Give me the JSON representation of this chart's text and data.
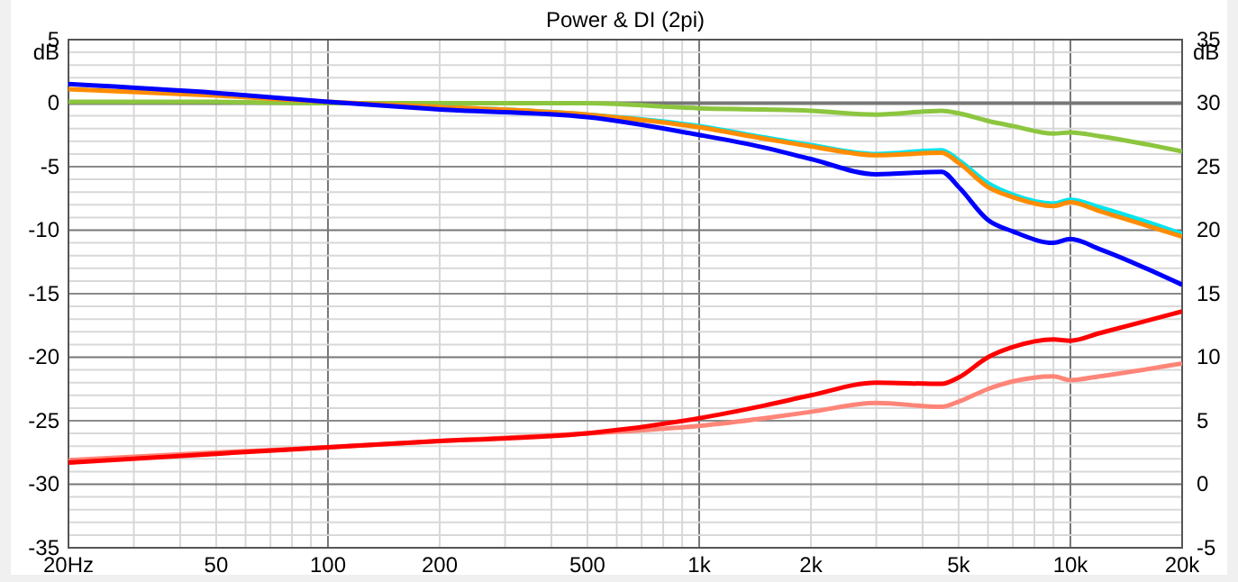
{
  "chart_data": {
    "type": "line",
    "title": "Power & DI (2pi)",
    "ylabel": "dB",
    "y2label": "dB",
    "log": "x",
    "grid": true,
    "line_style": "solid",
    "marker": "none",
    "x": [
      20,
      50,
      100,
      200,
      500,
      1000,
      1500,
      2000,
      3000,
      4500,
      5000,
      6000,
      7000,
      9000,
      10000,
      12000,
      20000
    ],
    "xlim": [
      20,
      20000
    ],
    "xticks": [
      {
        "value": 20,
        "label": "20Hz"
      },
      {
        "value": 30,
        "label": null
      },
      {
        "value": 40,
        "label": null
      },
      50,
      {
        "value": 60,
        "label": null
      },
      {
        "value": 70,
        "label": null
      },
      {
        "value": 80,
        "label": null
      },
      {
        "value": 90,
        "label": null
      },
      100,
      200,
      {
        "value": 300,
        "label": null
      },
      {
        "value": 400,
        "label": null
      },
      500,
      {
        "value": 600,
        "label": null
      },
      {
        "value": 700,
        "label": null
      },
      {
        "value": 800,
        "label": null
      },
      {
        "value": 900,
        "label": null
      },
      {
        "value": 1000,
        "label": "1k"
      },
      {
        "value": 2000,
        "label": "2k"
      },
      {
        "value": 3000,
        "label": null
      },
      {
        "value": 4000,
        "label": null
      },
      {
        "value": 5000,
        "label": "5k"
      },
      {
        "value": 6000,
        "label": null
      },
      {
        "value": 7000,
        "label": null
      },
      {
        "value": 8000,
        "label": null
      },
      {
        "value": 9000,
        "label": null
      },
      {
        "value": 10000,
        "label": "10k"
      },
      {
        "value": 20000,
        "label": "20k"
      }
    ],
    "ylim": [
      -35,
      5
    ],
    "yticks": [
      -35,
      {
        "value": -34,
        "label": null
      },
      {
        "value": -33,
        "label": null
      },
      {
        "value": -32,
        "label": null
      },
      {
        "value": -31,
        "label": null
      },
      -30,
      {
        "value": -29,
        "label": null
      },
      {
        "value": -28,
        "label": null
      },
      {
        "value": -27,
        "label": null
      },
      {
        "value": -26,
        "label": null
      },
      -25,
      {
        "value": -24,
        "label": null
      },
      {
        "value": -23,
        "label": null
      },
      {
        "value": -22,
        "label": null
      },
      {
        "value": -21,
        "label": null
      },
      -20,
      {
        "value": -19,
        "label": null
      },
      {
        "value": -18,
        "label": null
      },
      {
        "value": -17,
        "label": null
      },
      {
        "value": -16,
        "label": null
      },
      -15,
      {
        "value": -14,
        "label": null
      },
      {
        "value": -13,
        "label": null
      },
      {
        "value": -12,
        "label": null
      },
      {
        "value": -11,
        "label": null
      },
      -10,
      {
        "value": -9,
        "label": null
      },
      {
        "value": -8,
        "label": null
      },
      {
        "value": -7,
        "label": null
      },
      {
        "value": -6,
        "label": null
      },
      -5,
      {
        "value": -4,
        "label": null
      },
      {
        "value": -3,
        "label": null
      },
      {
        "value": -2,
        "label": null
      },
      {
        "value": -1,
        "label": null
      },
      0,
      {
        "value": 1,
        "label": null
      },
      {
        "value": 2,
        "label": null
      },
      {
        "value": 3,
        "label": null
      },
      {
        "value": 4,
        "label": null
      },
      5
    ],
    "y2lim": [
      -5,
      35
    ],
    "y2ticks": [
      -5,
      0,
      5,
      10,
      15,
      20,
      25,
      30,
      35
    ],
    "series": [
      {
        "color": "#8cc63f",
        "values": [
          0.1,
          0.1,
          0,
          0,
          0,
          -0.4,
          -0.5,
          -0.6,
          -0.9,
          -0.6,
          -0.8,
          -1.4,
          -1.8,
          -2.4,
          -2.3,
          -2.6,
          -3.8
        ]
      },
      {
        "color": "#00e5ee",
        "values": [
          null,
          null,
          null,
          -0.3,
          -0.9,
          -1.8,
          -2.7,
          -3.3,
          -4.0,
          -3.7,
          -4.5,
          -6.3,
          -7.2,
          -7.9,
          -7.6,
          -8.2,
          -10.3
        ]
      },
      {
        "color": "#ff8c00",
        "values": [
          1.1,
          0.6,
          0.1,
          -0.3,
          -0.9,
          -1.9,
          -2.8,
          -3.4,
          -4.1,
          -3.9,
          -4.7,
          -6.6,
          -7.4,
          -8.1,
          -7.8,
          -8.5,
          -10.5
        ]
      },
      {
        "color": "#0000ff",
        "values": [
          1.5,
          0.8,
          0.1,
          -0.5,
          -1.1,
          -2.5,
          -3.5,
          -4.4,
          -5.6,
          -5.4,
          -6.6,
          -9.2,
          -10.1,
          -11.0,
          -10.7,
          -11.5,
          -14.3
        ]
      },
      {
        "color": "#ff8578",
        "axis": "y2",
        "values": [
          1.9,
          2.5,
          2.9,
          3.4,
          4.0,
          4.6,
          5.2,
          5.7,
          6.4,
          6.1,
          6.5,
          7.5,
          8.1,
          8.5,
          8.2,
          8.5,
          9.5
        ]
      },
      {
        "color": "#ff0000",
        "axis": "y2",
        "values": [
          1.7,
          2.4,
          2.9,
          3.4,
          4.0,
          5.2,
          6.2,
          7.0,
          8.0,
          7.9,
          8.4,
          10.0,
          10.8,
          11.4,
          11.3,
          11.9,
          13.6
        ]
      }
    ]
  }
}
